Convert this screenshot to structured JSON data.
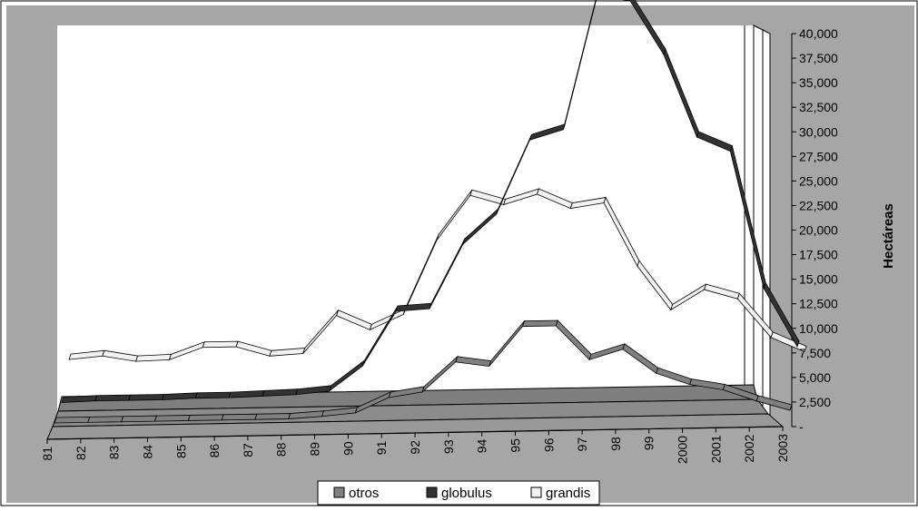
{
  "chart_data": {
    "type": "line",
    "subtype": "3d-ribbon",
    "title": "",
    "xlabel": "",
    "ylabel": "Hectáreas",
    "ylim": [
      0,
      40000
    ],
    "grid": false,
    "legend_position": "bottom",
    "categories": [
      "81",
      "82",
      "83",
      "84",
      "85",
      "86",
      "87",
      "88",
      "89",
      "90",
      "91",
      "92",
      "93",
      "94",
      "95",
      "96",
      "97",
      "98",
      "99",
      "2000",
      "2001",
      "2002",
      "2003"
    ],
    "y_ticks": [
      "-",
      "2,500",
      "5,000",
      "7,500",
      "10,000",
      "12,500",
      "15,000",
      "17,500",
      "20,000",
      "22,500",
      "25,000",
      "27,500",
      "30,000",
      "32,500",
      "35,000",
      "37,500",
      "40,000"
    ],
    "series": [
      {
        "name": "otros",
        "color": "#808080",
        "values": [
          0,
          0,
          0,
          0,
          0,
          0,
          0,
          0,
          200,
          500,
          2000,
          2500,
          5500,
          5000,
          9000,
          9000,
          5500,
          6500,
          4000,
          2800,
          2200,
          1000,
          0
        ]
      },
      {
        "name": "globulus",
        "color": "#333333",
        "values": [
          600,
          700,
          700,
          700,
          800,
          800,
          900,
          1000,
          1300,
          3800,
          9300,
          9500,
          16000,
          19000,
          26500,
          27500,
          41000,
          40500,
          35000,
          26500,
          25000,
          11000,
          5000
        ]
      },
      {
        "name": "grandis",
        "color": "#f2f2f2",
        "values": [
          3500,
          3800,
          3200,
          3300,
          4500,
          4500,
          3500,
          3700,
          7500,
          6000,
          7500,
          15000,
          19500,
          18500,
          19500,
          18000,
          18500,
          12000,
          7500,
          9500,
          8500,
          4500,
          3000
        ]
      }
    ]
  }
}
